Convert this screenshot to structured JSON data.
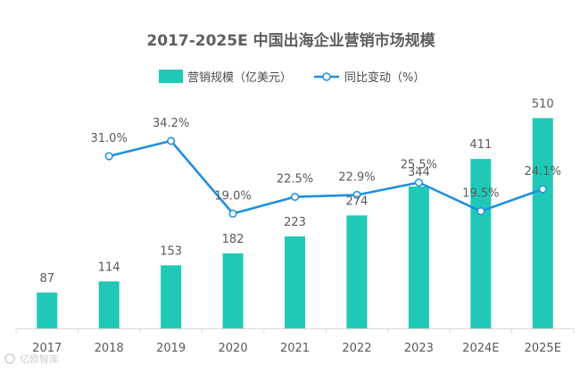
{
  "chart_data": {
    "type": "bar+line",
    "title": "2017-2025E 中国出海企业营销市场规模",
    "categories": [
      "2017",
      "2018",
      "2019",
      "2020",
      "2021",
      "2022",
      "2023",
      "2024E",
      "2025E"
    ],
    "series": [
      {
        "name": "营销规模（亿美元）",
        "type": "bar",
        "axis": "left",
        "values": [
          87,
          114,
          153,
          182,
          223,
          274,
          344,
          411,
          510
        ],
        "labels": [
          "87",
          "114",
          "153",
          "182",
          "223",
          "274",
          "344",
          "411",
          "510"
        ]
      },
      {
        "name": "同比变动（%）",
        "type": "line",
        "axis": "right",
        "values": [
          null,
          31.0,
          34.2,
          19.0,
          22.5,
          22.9,
          25.5,
          19.5,
          24.1
        ],
        "labels": [
          "",
          "31.0%",
          "34.2%",
          "19.0%",
          "22.5%",
          "22.9%",
          "25.5%",
          "19.5%",
          "24.1%"
        ]
      }
    ],
    "ylim_left": [
      0,
      580
    ],
    "ylim_right": [
      -5,
      45
    ],
    "grid": false,
    "legend_position": "top-center",
    "colors": {
      "bar": "#20c9b7",
      "line": "#1f8fe0",
      "marker_fill": "#ffffff",
      "axis": "#d9d9d9"
    }
  },
  "watermark": {
    "text": "亿欧智库"
  }
}
